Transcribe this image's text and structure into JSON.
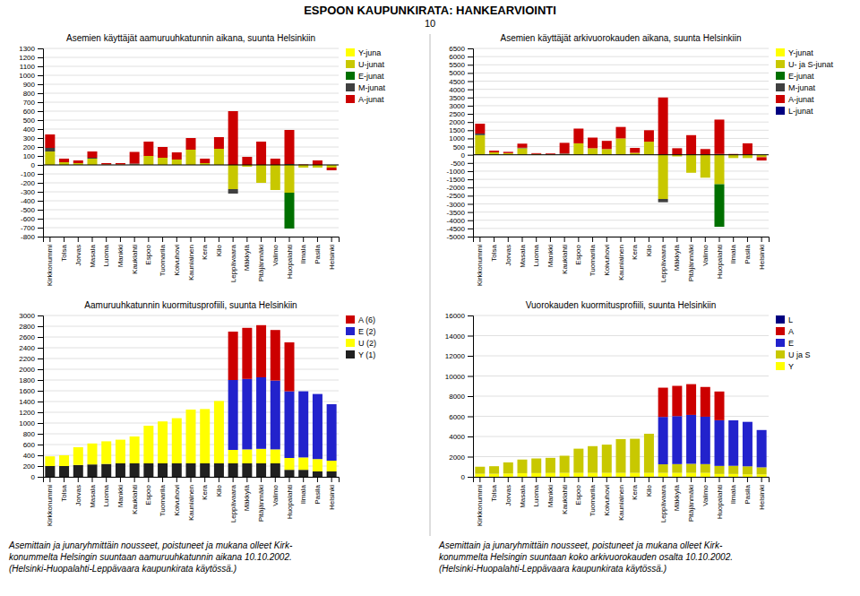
{
  "title": "ESPOON KAUPUNKIRATA: HANKEARVIOINTI",
  "subtitle": "10",
  "chart_data": [
    {
      "type": "bar",
      "stacked": true,
      "grid": true,
      "legend": "right",
      "title": "Asemien käyttäjät aamuruuhkatunnin aikana, suunta Helsinkiin",
      "categories": [
        "Kirkkonummi",
        "Tolsa",
        "Jorvas",
        "Masala",
        "Luoma",
        "Mankki",
        "Kauklahti",
        "Espoo",
        "Tuomarila",
        "Koivuhovi",
        "Kauniainen",
        "Kera",
        "Kilo",
        "Leppävaara",
        "Mäkkylä",
        "Pitäjänmäki",
        "Valimo",
        "Huopalahti",
        "Ilmala",
        "Pasila",
        "Helsinki"
      ],
      "series": [
        {
          "name": "Y-juna",
          "color": "#ffff00",
          "values": [
            0,
            0,
            0,
            0,
            0,
            0,
            0,
            0,
            0,
            0,
            0,
            0,
            0,
            0,
            0,
            0,
            0,
            0,
            0,
            0,
            0
          ]
        },
        {
          "name": "U-junat",
          "color": "#c8c800",
          "values": [
            150,
            30,
            20,
            70,
            5,
            5,
            5,
            100,
            80,
            60,
            170,
            20,
            180,
            -270,
            -20,
            -200,
            -280,
            -310,
            -30,
            -30,
            -30
          ]
        },
        {
          "name": "E-junat",
          "color": "#007000",
          "values": [
            0,
            0,
            0,
            0,
            0,
            0,
            0,
            0,
            0,
            0,
            0,
            0,
            0,
            0,
            0,
            0,
            0,
            -400,
            0,
            0,
            0
          ]
        },
        {
          "name": "M-junat",
          "color": "#404040",
          "values": [
            40,
            0,
            0,
            10,
            0,
            0,
            10,
            0,
            0,
            0,
            0,
            0,
            0,
            -50,
            0,
            0,
            0,
            10,
            0,
            0,
            0
          ]
        },
        {
          "name": "A-junat",
          "color": "#cc0000",
          "values": [
            150,
            40,
            30,
            70,
            15,
            15,
            130,
            160,
            120,
            80,
            130,
            50,
            130,
            600,
            90,
            260,
            70,
            380,
            5,
            50,
            -30
          ]
        }
      ],
      "ylim": [
        -800,
        1300
      ],
      "yticks": [
        -800,
        -700,
        -600,
        -500,
        -400,
        -300,
        -200,
        -100,
        0,
        100,
        200,
        300,
        400,
        500,
        600,
        700,
        800,
        900,
        1000,
        1100,
        1200,
        1300
      ]
    },
    {
      "type": "bar",
      "stacked": true,
      "grid": true,
      "legend": "right",
      "title": "Asemien käyttäjät arkivuorokauden aikana, suunta Helsinkiin",
      "categories": [
        "Kirkkonummi",
        "Tolsa",
        "Jorvas",
        "Masala",
        "Luoma",
        "Mankki",
        "Kauklahti",
        "Espoo",
        "Tuomarila",
        "Koivuhovi",
        "Kauniainen",
        "Kera",
        "Kilo",
        "Leppävaara",
        "Mäkkylä",
        "Pitäjänmäki",
        "Valimo",
        "Huopalahti",
        "Ilmala",
        "Pasila",
        "Helsinki"
      ],
      "series": [
        {
          "name": "Y-junat",
          "color": "#ffff00",
          "values": [
            0,
            0,
            0,
            0,
            0,
            0,
            0,
            0,
            0,
            0,
            0,
            0,
            0,
            0,
            0,
            0,
            0,
            0,
            0,
            0,
            0
          ]
        },
        {
          "name": "U- ja S-junat",
          "color": "#c8c800",
          "values": [
            1200,
            150,
            100,
            400,
            50,
            30,
            50,
            700,
            400,
            350,
            1000,
            120,
            800,
            -2700,
            -100,
            -1100,
            -1400,
            -1800,
            -200,
            -200,
            -150
          ]
        },
        {
          "name": "E-junat",
          "color": "#007000",
          "values": [
            0,
            0,
            0,
            0,
            0,
            0,
            0,
            0,
            0,
            0,
            0,
            0,
            0,
            0,
            0,
            0,
            0,
            -2600,
            0,
            0,
            0
          ]
        },
        {
          "name": "M-junat",
          "color": "#404040",
          "values": [
            100,
            0,
            0,
            30,
            0,
            0,
            30,
            0,
            0,
            0,
            0,
            0,
            0,
            -200,
            0,
            0,
            0,
            50,
            0,
            0,
            0
          ]
        },
        {
          "name": "A-junat",
          "color": "#cc0000",
          "values": [
            600,
            100,
            80,
            250,
            50,
            50,
            650,
            900,
            650,
            500,
            700,
            300,
            700,
            3500,
            400,
            1200,
            350,
            2100,
            50,
            700,
            -200
          ]
        },
        {
          "name": "L-junat",
          "color": "#000080",
          "values": [
            null,
            null,
            null,
            null,
            null,
            null,
            null,
            null,
            null,
            null,
            null,
            null,
            null,
            null,
            null,
            null,
            null,
            null,
            null,
            null,
            null
          ]
        }
      ],
      "ylim": [
        -5000,
        6500
      ],
      "yticks": [
        -5000,
        -4500,
        -4000,
        -3500,
        -3000,
        -2500,
        -2000,
        -1500,
        -1000,
        -500,
        0,
        500,
        1000,
        1500,
        2000,
        2500,
        3000,
        3500,
        4000,
        4500,
        5000,
        5500,
        6000,
        6500
      ]
    },
    {
      "type": "bar",
      "stacked": true,
      "grid": true,
      "legend": "right",
      "title": "Aamuruuhkatunnin kuormitusprofiili, suunta Helsinkiin",
      "categories": [
        "Kirkkonummi",
        "Tolsa",
        "Jorvas",
        "Masala",
        "Luoma",
        "Mankki",
        "Kauklahti",
        "Espoo",
        "Tuomarila",
        "Koivuhovi",
        "Kauniainen",
        "Kera",
        "Kilo",
        "Leppävaara",
        "Mäkkylä",
        "Pitäjänmäki",
        "Valimo",
        "Huopalahti",
        "Ilmala",
        "Pasila",
        "Helsinki"
      ],
      "series": [
        {
          "name": "Y (1)",
          "color": "#202020",
          "values": [
            200,
            200,
            220,
            230,
            240,
            250,
            250,
            250,
            250,
            250,
            250,
            250,
            250,
            250,
            250,
            250,
            250,
            130,
            130,
            100,
            100
          ]
        },
        {
          "name": "U (2)",
          "color": "#ffff00",
          "values": [
            180,
            200,
            330,
            390,
            420,
            440,
            500,
            700,
            780,
            840,
            1000,
            1010,
            1160,
            250,
            260,
            270,
            260,
            220,
            230,
            230,
            200
          ]
        },
        {
          "name": "E (2)",
          "color": "#2222cc",
          "values": [
            0,
            0,
            0,
            0,
            0,
            0,
            0,
            0,
            0,
            0,
            0,
            0,
            0,
            1300,
            1310,
            1330,
            1280,
            1240,
            1230,
            1210,
            1050
          ]
        },
        {
          "name": "A (6)",
          "color": "#cc0000",
          "values": [
            0,
            0,
            0,
            0,
            0,
            0,
            0,
            0,
            0,
            0,
            0,
            0,
            0,
            900,
            950,
            970,
            940,
            910,
            0,
            0,
            0
          ]
        }
      ],
      "ylim": [
        0,
        3000
      ],
      "yticks": [
        0,
        200,
        400,
        600,
        800,
        1000,
        1200,
        1400,
        1600,
        1800,
        2000,
        2200,
        2400,
        2600,
        2800,
        3000
      ],
      "annotations": [
        "Asemittain ja junaryhmittäin nousseet, poistuneet ja mukana olleet Kirk-\nkonummelta Helsingin suuntaan aamuruuhkatunnin aikana 10.10.2002.\n(Helsinki-Huopalahti-Leppävaara kaupunkirata käytössä.)"
      ]
    },
    {
      "type": "bar",
      "stacked": true,
      "grid": true,
      "legend": "right",
      "title": "Vuorokauden kuormitusprofiili, suunta Helsinkiin",
      "categories": [
        "Kirkkonummi",
        "Tolsa",
        "Jorvas",
        "Masala",
        "Luoma",
        "Mankki",
        "Kauklahti",
        "Espoo",
        "Tuomarila",
        "Koivuhovi",
        "Kauniainen",
        "Kera",
        "Kilo",
        "Leppävaara",
        "Mäkkylä",
        "Pitäjänmäki",
        "Valimo",
        "Huopalahti",
        "Ilmala",
        "Pasila",
        "Helsinki"
      ],
      "series": [
        {
          "name": "Y",
          "color": "#ffff00",
          "values": [
            300,
            300,
            330,
            360,
            370,
            380,
            390,
            390,
            390,
            390,
            390,
            390,
            390,
            390,
            390,
            390,
            390,
            280,
            280,
            240,
            240
          ]
        },
        {
          "name": "U ja S",
          "color": "#c8c800",
          "values": [
            700,
            750,
            1100,
            1350,
            1450,
            1500,
            1700,
            2400,
            2650,
            2800,
            3350,
            3380,
            3880,
            850,
            870,
            900,
            870,
            800,
            810,
            800,
            700
          ]
        },
        {
          "name": "E",
          "color": "#2222cc",
          "values": [
            0,
            0,
            0,
            0,
            0,
            0,
            0,
            0,
            0,
            0,
            0,
            0,
            0,
            4700,
            4760,
            4850,
            4700,
            4530,
            4510,
            4410,
            3700
          ]
        },
        {
          "name": "A",
          "color": "#cc0000",
          "values": [
            0,
            0,
            0,
            0,
            0,
            0,
            0,
            0,
            0,
            0,
            0,
            0,
            0,
            2900,
            3000,
            3050,
            2950,
            2850,
            0,
            0,
            0
          ]
        },
        {
          "name": "L",
          "color": "#000080",
          "values": [
            null,
            null,
            null,
            null,
            null,
            null,
            null,
            null,
            null,
            null,
            null,
            null,
            null,
            null,
            null,
            null,
            null,
            null,
            null,
            null,
            null
          ]
        }
      ],
      "ylim": [
        0,
        16000
      ],
      "yticks": [
        0,
        2000,
        4000,
        6000,
        8000,
        10000,
        12000,
        14000,
        16000
      ],
      "annotations": [
        "Asemittain ja junaryhmittäin nousseet, poistuneet ja mukana olleet Kirk-\nkonummelta Helsingin suuntaan koko arkivuorokauden osalta 10.10.2002.\n(Helsinki-Huopalahti-Leppävaara kaupunkirata käytössä.)"
      ]
    }
  ]
}
